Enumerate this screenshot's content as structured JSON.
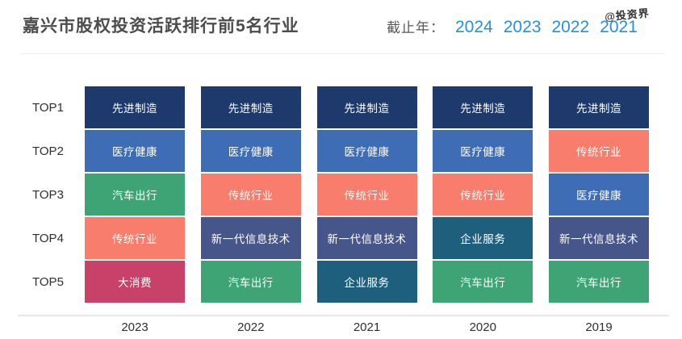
{
  "header": {
    "title": "嘉兴市股权投资活跃排行前5名行业",
    "year_selector": {
      "label": "截止年：",
      "options": [
        "2024",
        "2023",
        "2022",
        "2021"
      ]
    },
    "watermark": "@投资界"
  },
  "chart_data": {
    "type": "table",
    "title": "嘉兴市股权投资活跃排行前5名行业",
    "row_labels": [
      "TOP1",
      "TOP2",
      "TOP3",
      "TOP4",
      "TOP5"
    ],
    "categories": [
      "2023",
      "2022",
      "2021",
      "2020",
      "2019"
    ],
    "columns": [
      {
        "year": "2023",
        "ranking": [
          "先进制造",
          "医疗健康",
          "汽车出行",
          "传统行业",
          "大消费"
        ]
      },
      {
        "year": "2022",
        "ranking": [
          "先进制造",
          "医疗健康",
          "传统行业",
          "新一代信息技术",
          "汽车出行"
        ]
      },
      {
        "year": "2021",
        "ranking": [
          "先进制造",
          "医疗健康",
          "传统行业",
          "新一代信息技术",
          "企业服务"
        ]
      },
      {
        "year": "2020",
        "ranking": [
          "先进制造",
          "医疗健康",
          "传统行业",
          "企业服务",
          "汽车出行"
        ]
      },
      {
        "year": "2019",
        "ranking": [
          "先进制造",
          "传统行业",
          "医疗健康",
          "新一代信息技术",
          "汽车出行"
        ]
      }
    ],
    "industry_colors": {
      "先进制造": "#1E3A6D",
      "医疗健康": "#3E6DB5",
      "汽车出行": "#3FA475",
      "传统行业": "#F97D6C",
      "大消费": "#C84169",
      "新一代信息技术": "#46568B",
      "企业服务": "#1F5F7E"
    },
    "grid": false,
    "legend_position": "none"
  },
  "colors": {
    "accent_link": "#2590E2",
    "title_text": "#4C4C4C",
    "divider": "#EDEDED",
    "axis_line": "#E8E8E8",
    "label_text": "#2F2F2F",
    "cell_text": "#FFFFFF"
  }
}
